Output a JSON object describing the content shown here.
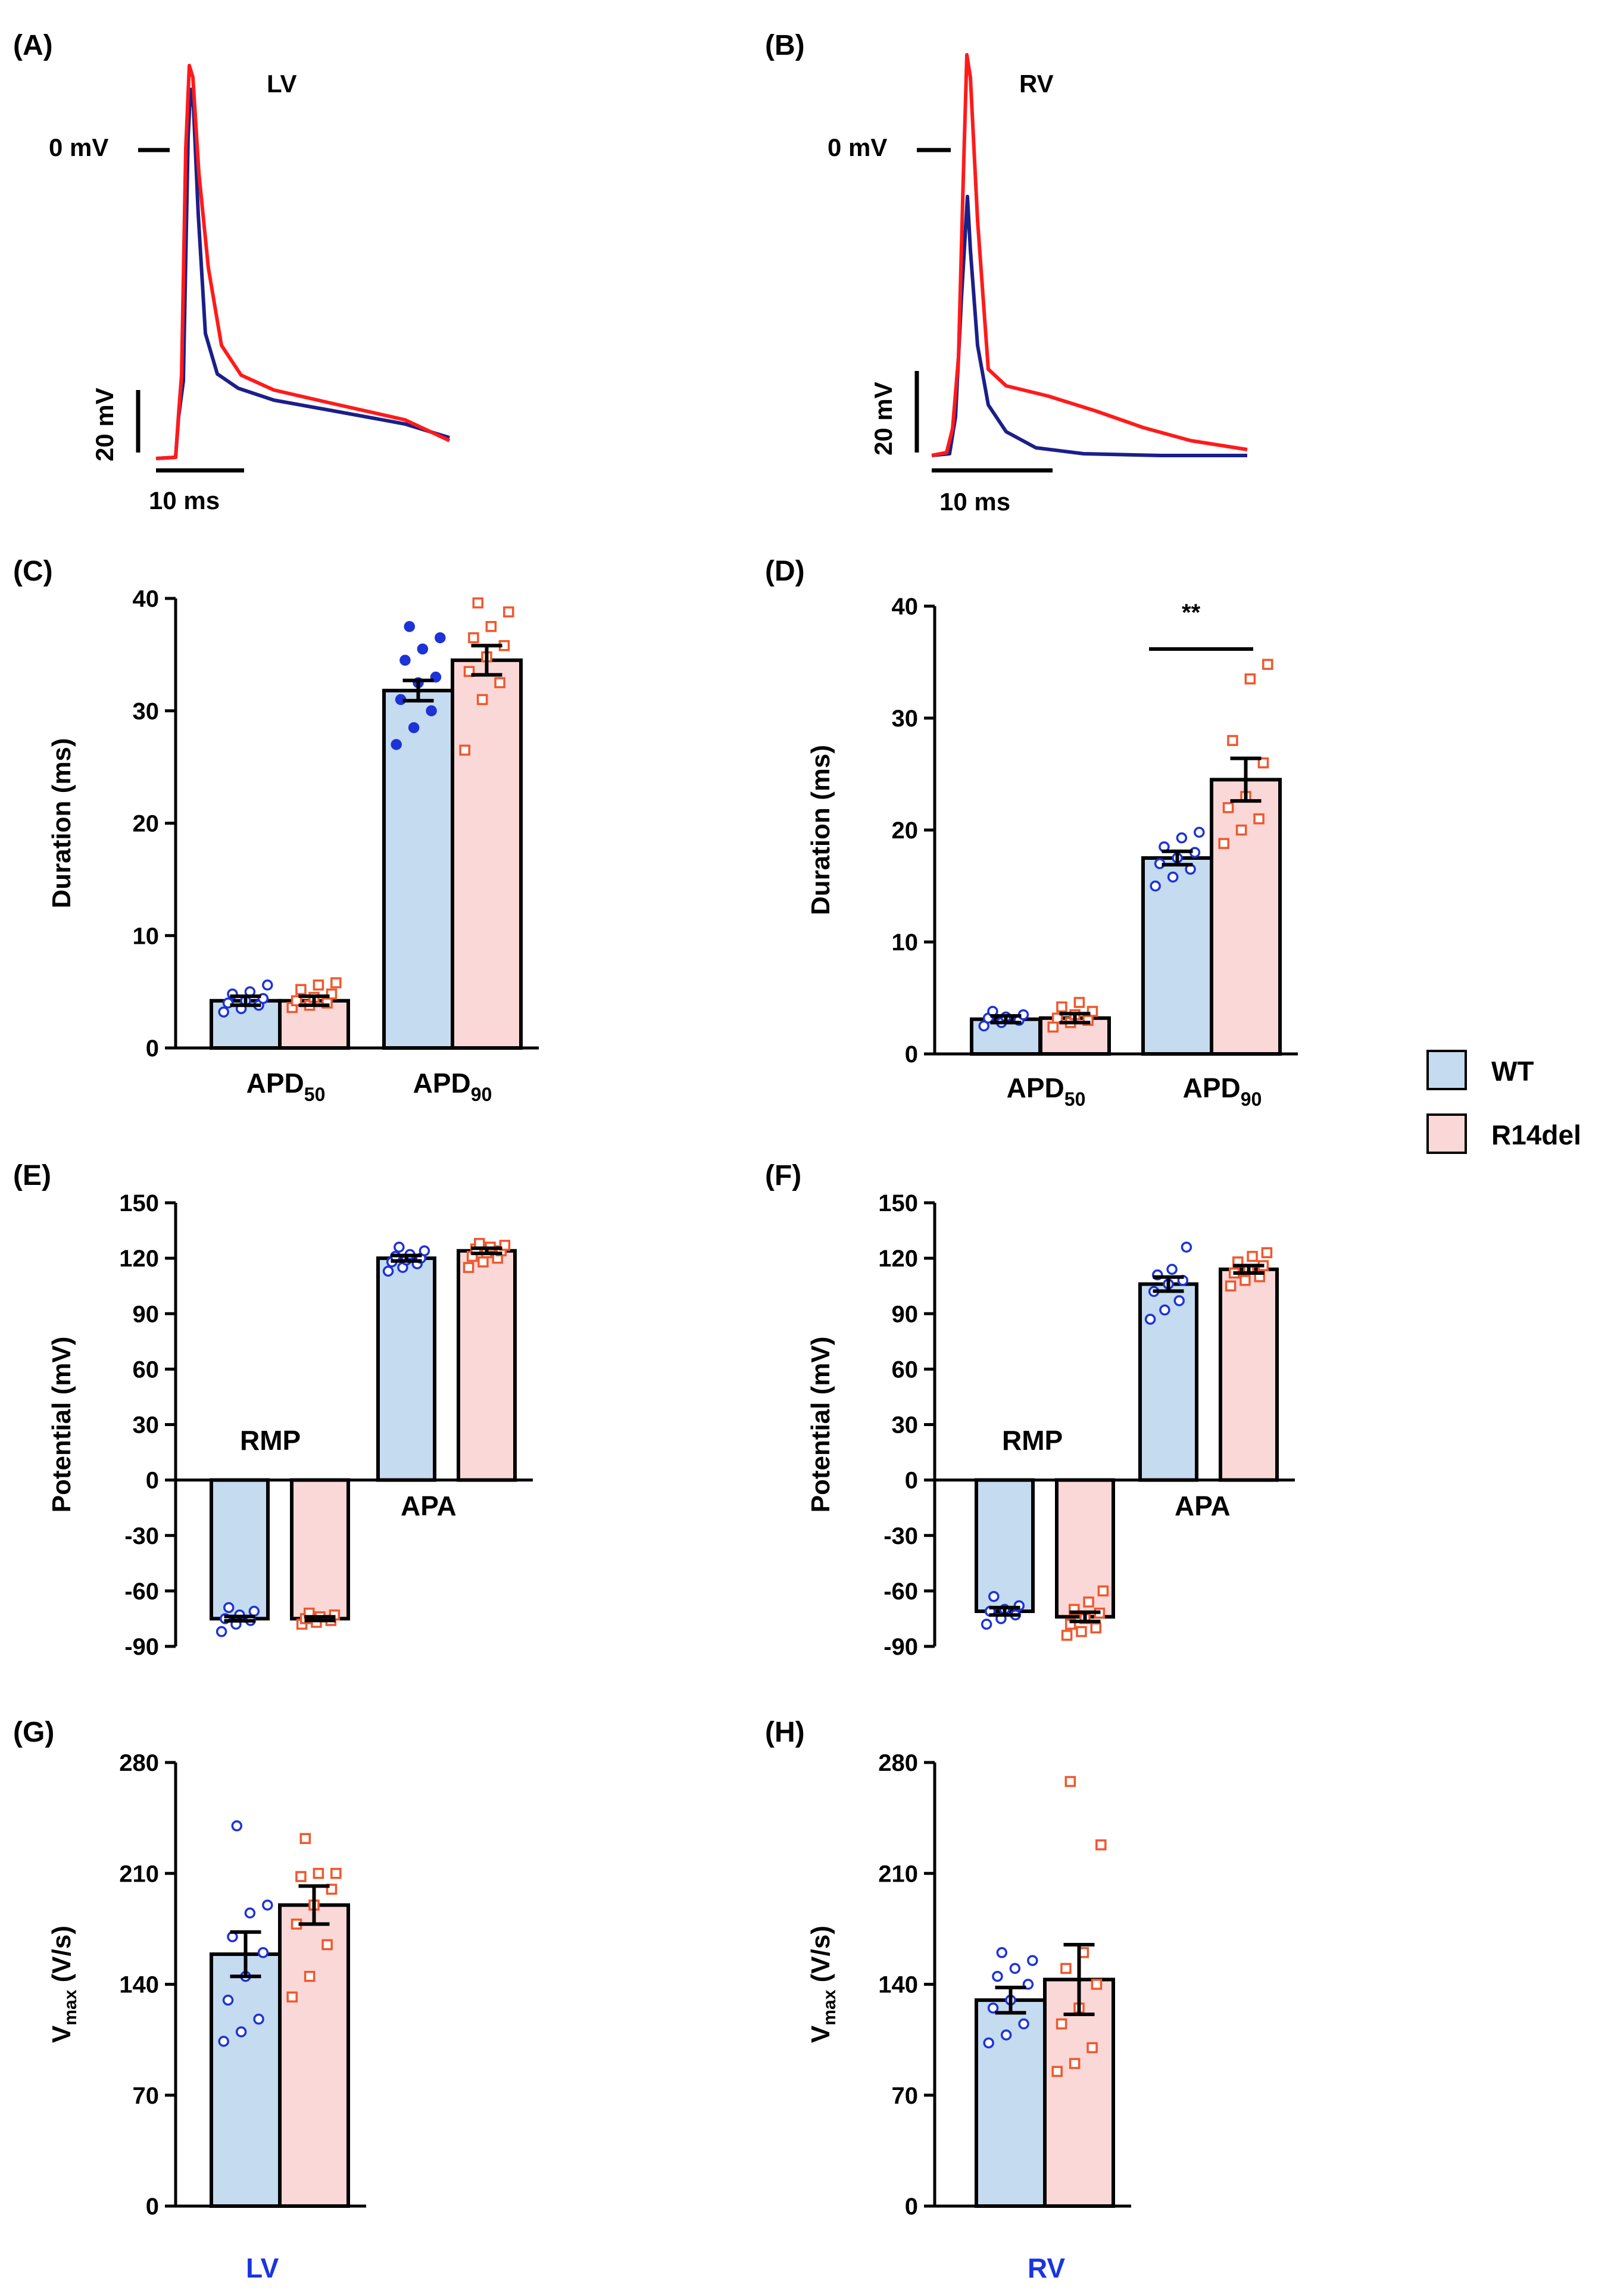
{
  "colors": {
    "wt_fill": "#c5dbf0",
    "r14_fill": "#fbd8d8",
    "wt_point": "#1c33d8",
    "r14_point": "#f0572d",
    "wt_trace": "#1b1f8a",
    "r14_trace": "#ff1a1a"
  },
  "legend": {
    "wt": "WT",
    "r14": "R14del"
  },
  "panels": {
    "A": {
      "label": "(A)",
      "title": "LV",
      "zero": "0 mV",
      "vscale": "20 mV",
      "hscale": "10 ms"
    },
    "B": {
      "label": "(B)",
      "title": "RV",
      "zero": "0 mV",
      "vscale": "20 mV",
      "hscale": "10 ms"
    },
    "C": {
      "label": "(C)"
    },
    "D": {
      "label": "(D)",
      "sig": "**"
    },
    "E": {
      "label": "(E)",
      "rmp": "RMP",
      "apa": "APA"
    },
    "F": {
      "label": "(F)",
      "rmp": "RMP",
      "apa": "APA"
    },
    "G": {
      "label": "(G)",
      "bottom": "LV"
    },
    "H": {
      "label": "(H)",
      "bottom": "RV"
    }
  },
  "chart_data": [
    {
      "id": "A",
      "type": "line",
      "title": "LV",
      "description_units": "membrane potential traces",
      "series": [
        {
          "name": "WT",
          "x_ms": [
            0,
            1,
            1.5,
            2.2,
            3.5,
            5,
            8,
            12,
            20,
            30
          ],
          "y_mV": [
            -62,
            -62,
            -45,
            12,
            -28,
            -40,
            -44,
            -47,
            -53,
            -60
          ]
        },
        {
          "name": "R14del",
          "x_ms": [
            0,
            1,
            1.5,
            2.2,
            3.5,
            5,
            8,
            12,
            20,
            30
          ],
          "y_mV": [
            -62,
            -62,
            -40,
            15,
            -18,
            -32,
            -41,
            -46,
            -53,
            -61
          ]
        }
      ]
    },
    {
      "id": "B",
      "type": "line",
      "title": "RV",
      "series": [
        {
          "name": "WT",
          "x_ms": [
            0,
            1,
            1.8,
            2.6,
            3.5,
            5,
            8,
            12,
            20,
            30
          ],
          "y_mV": [
            -62,
            -60,
            -40,
            5,
            -50,
            -57,
            -60,
            -61,
            -62,
            -62
          ]
        },
        {
          "name": "R14del",
          "x_ms": [
            0,
            1,
            1.8,
            2.6,
            3.5,
            5,
            8,
            12,
            20,
            30
          ],
          "y_mV": [
            -62,
            -60,
            -35,
            18,
            -30,
            -36,
            -37,
            -42,
            -52,
            -61
          ]
        }
      ]
    },
    {
      "id": "C",
      "type": "bar",
      "ylabel": "Duration (ms)",
      "ylim": [
        0,
        40
      ],
      "yticks": [
        0,
        10,
        20,
        30,
        40
      ],
      "categories": [
        "APD50",
        "APD90"
      ],
      "category_main": [
        "APD",
        "APD"
      ],
      "category_sub": [
        "50",
        "90"
      ],
      "series": [
        {
          "name": "WT",
          "values": [
            4.2,
            31.8
          ],
          "errors": [
            0.4,
            0.9
          ],
          "points": [
            [
              3.2,
              3.5,
              3.8,
              4.0,
              4.2,
              4.4,
              4.8,
              5.0,
              5.6
            ],
            [
              27.0,
              28.5,
              30.0,
              31.0,
              32.5,
              33.0,
              34.5,
              35.5,
              36.5,
              37.5
            ]
          ]
        },
        {
          "name": "R14del",
          "values": [
            4.2,
            34.5
          ],
          "errors": [
            0.4,
            1.3
          ],
          "points": [
            [
              3.6,
              3.8,
              4.0,
              4.2,
              4.5,
              4.8,
              5.2,
              5.6,
              5.8
            ],
            [
              26.5,
              31.0,
              32.5,
              33.5,
              34.8,
              35.8,
              36.5,
              37.5,
              38.8,
              39.6
            ]
          ]
        }
      ]
    },
    {
      "id": "D",
      "type": "bar",
      "ylabel": "Duration (ms)",
      "ylim": [
        0,
        40
      ],
      "yticks": [
        0,
        10,
        20,
        30,
        40
      ],
      "categories": [
        "APD50",
        "APD90"
      ],
      "category_main": [
        "APD",
        "APD"
      ],
      "category_sub": [
        "50",
        "90"
      ],
      "annotation": "** (APD90)",
      "series": [
        {
          "name": "WT",
          "values": [
            3.1,
            17.5
          ],
          "errors": [
            0.3,
            0.6
          ],
          "points": [
            [
              2.5,
              2.8,
              3.0,
              3.2,
              3.3,
              3.5,
              3.8
            ],
            [
              15.0,
              15.8,
              16.5,
              17.0,
              17.5,
              18.0,
              18.5,
              19.3,
              19.8
            ]
          ]
        },
        {
          "name": "R14del",
          "values": [
            3.2,
            24.5
          ],
          "errors": [
            0.4,
            1.9
          ],
          "points": [
            [
              2.4,
              2.8,
              3.0,
              3.2,
              3.5,
              3.8,
              4.2,
              4.6
            ],
            [
              18.8,
              20.0,
              21.0,
              22.0,
              23.0,
              26.0,
              28.0,
              33.5,
              34.8
            ]
          ]
        }
      ]
    },
    {
      "id": "E",
      "type": "bar",
      "ylabel": "Potential  (mV)",
      "ylim": [
        -90,
        150
      ],
      "yticks": [
        -90,
        -60,
        -30,
        0,
        30,
        60,
        90,
        120,
        150
      ],
      "categories": [
        "RMP",
        "APA"
      ],
      "series": [
        {
          "name": "WT",
          "values": [
            -75,
            120
          ],
          "errors": [
            1.2,
            1.5
          ],
          "points": [
            [
              -82,
              -78,
              -76,
              -75,
              -73,
              -71,
              -69
            ],
            [
              113,
              115,
              117,
              118,
              119,
              120,
              121,
              122,
              124,
              126
            ]
          ]
        },
        {
          "name": "R14del",
          "values": [
            -75,
            124
          ],
          "errors": [
            1.0,
            1.4
          ],
          "points": [
            [
              -78,
              -77,
              -76,
              -75,
              -74,
              -73,
              -72
            ],
            [
              115,
              118,
              120,
              121,
              123,
              124,
              125,
              126,
              127,
              128
            ]
          ]
        }
      ]
    },
    {
      "id": "F",
      "type": "bar",
      "ylabel": "Potential  (mV)",
      "ylim": [
        -90,
        150
      ],
      "yticks": [
        -90,
        -60,
        -30,
        0,
        30,
        60,
        90,
        120,
        150
      ],
      "categories": [
        "RMP",
        "APA"
      ],
      "series": [
        {
          "name": "WT",
          "values": [
            -71,
            106
          ],
          "errors": [
            2.0,
            3.8
          ],
          "points": [
            [
              -78,
              -75,
              -73,
              -71,
              -70,
              -68,
              -63
            ],
            [
              87,
              92,
              97,
              102,
              106,
              108,
              111,
              114,
              126
            ]
          ]
        },
        {
          "name": "R14del",
          "values": [
            -74,
            114
          ],
          "errors": [
            2.5,
            2.0
          ],
          "points": [
            [
              -84,
              -82,
              -80,
              -78,
              -75,
              -72,
              -70,
              -66,
              -60
            ],
            [
              105,
              108,
              110,
              112,
              114,
              116,
              118,
              121,
              123
            ]
          ]
        }
      ]
    },
    {
      "id": "G",
      "type": "bar",
      "ylabel": "Vmax (V/s)",
      "ylim": [
        0,
        280
      ],
      "yticks": [
        0,
        70,
        140,
        210,
        280
      ],
      "categories": [
        "LV"
      ],
      "series": [
        {
          "name": "WT",
          "values": [
            159
          ],
          "errors": [
            14
          ],
          "points": [
            [
              104,
              110,
              118,
              130,
              145,
              160,
              170,
              185,
              190,
              240
            ]
          ]
        },
        {
          "name": "R14del",
          "values": [
            190
          ],
          "errors": [
            12
          ],
          "points": [
            [
              132,
              145,
              165,
              178,
              190,
              200,
              208,
              210,
              210,
              232
            ]
          ]
        }
      ]
    },
    {
      "id": "H",
      "type": "bar",
      "ylabel": "Vmax (V/s)",
      "ylim": [
        0,
        280
      ],
      "yticks": [
        0,
        70,
        140,
        210,
        280
      ],
      "categories": [
        "RV"
      ],
      "series": [
        {
          "name": "WT",
          "values": [
            130
          ],
          "errors": [
            8
          ],
          "points": [
            [
              103,
              108,
              115,
              125,
              130,
              140,
              145,
              150,
              155,
              160
            ]
          ]
        },
        {
          "name": "R14del",
          "values": [
            143
          ],
          "errors": [
            22
          ],
          "points": [
            [
              85,
              90,
              100,
              115,
              125,
              140,
              150,
              160,
              228,
              268
            ]
          ]
        }
      ]
    }
  ]
}
